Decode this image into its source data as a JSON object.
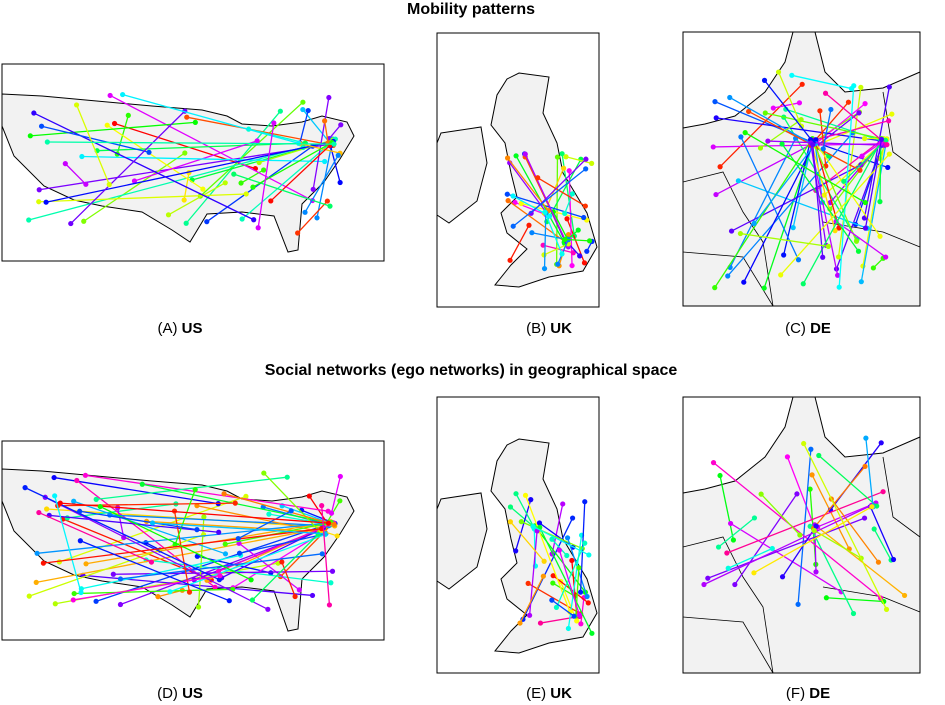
{
  "titles": [
    "Mobility patterns",
    "Social networks (ego networks) in geographical space"
  ],
  "panels": [
    {
      "label": "(A)",
      "region": "US"
    },
    {
      "label": "(B)",
      "region": "UK"
    },
    {
      "label": "(C)",
      "region": "DE"
    },
    {
      "label": "(D)",
      "region": "US"
    },
    {
      "label": "(E)",
      "region": "UK"
    },
    {
      "label": "(F)",
      "region": "DE"
    }
  ]
}
